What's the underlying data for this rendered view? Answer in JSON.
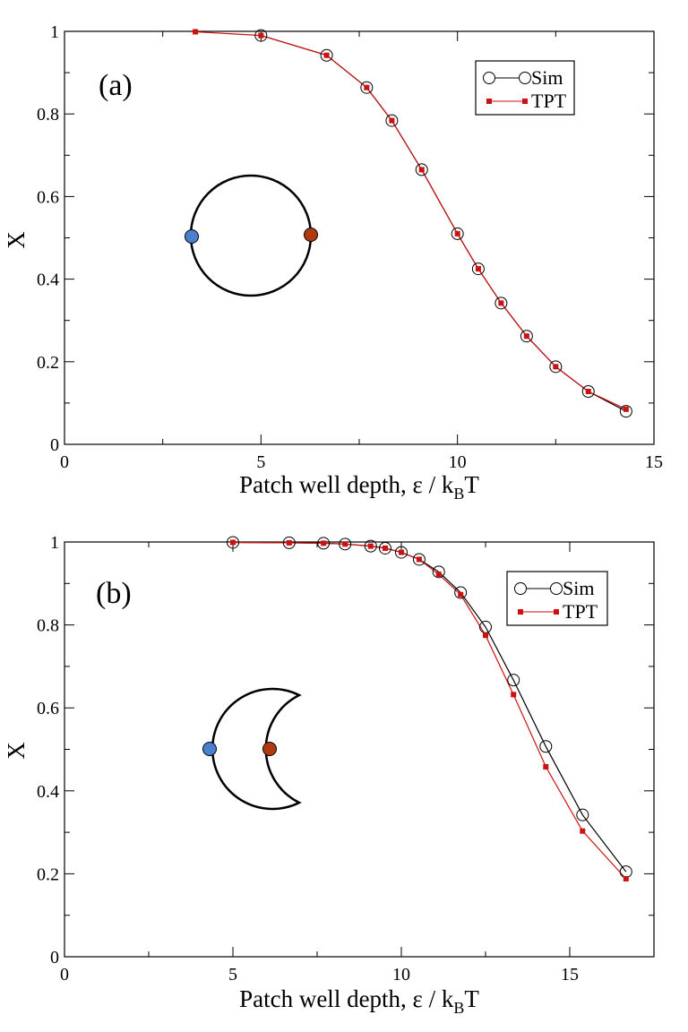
{
  "chart_data": [
    {
      "type": "line",
      "panel_label": "(a)",
      "xlabel": "Patch well depth, ε / k",
      "xlabel_sub": "B",
      "xlabel_tail": "T",
      "ylabel": "X",
      "xlim": [
        0,
        15
      ],
      "ylim": [
        0,
        1
      ],
      "xticks": [
        0,
        5,
        10,
        15
      ],
      "yticks": [
        0,
        0.2,
        0.4,
        0.6,
        0.8,
        1
      ],
      "ytick_labels": [
        "0",
        "0.2",
        "0.4",
        "0.6",
        "0.8",
        "1"
      ],
      "grid": false,
      "legend_position": "top-right",
      "inset_shape": "circle",
      "colors": {
        "sim": "#000000",
        "tpt": "#cc1111",
        "patch_left": "#4a7fd0",
        "patch_right": "#b23a10"
      },
      "series": [
        {
          "name": "Sim",
          "marker": "open-circle",
          "x": [
            5.0,
            6.67,
            7.69,
            8.33,
            9.09,
            10.0,
            10.53,
            11.11,
            11.76,
            12.5,
            13.33,
            14.29
          ],
          "y": [
            0.99,
            0.942,
            0.864,
            0.784,
            0.665,
            0.51,
            0.425,
            0.342,
            0.262,
            0.188,
            0.128,
            0.08
          ]
        },
        {
          "name": "TPT",
          "marker": "filled-square",
          "x": [
            3.33,
            5.0,
            6.67,
            7.69,
            8.33,
            9.09,
            10.0,
            10.53,
            11.11,
            11.76,
            12.5,
            13.33,
            14.29
          ],
          "y": [
            0.999,
            0.99,
            0.942,
            0.864,
            0.784,
            0.665,
            0.51,
            0.425,
            0.342,
            0.262,
            0.188,
            0.128,
            0.085
          ]
        }
      ]
    },
    {
      "type": "line",
      "panel_label": "(b)",
      "xlabel": "Patch well depth, ε / k",
      "xlabel_sub": "B",
      "xlabel_tail": "T",
      "ylabel": "X",
      "xlim": [
        0,
        17.5
      ],
      "ylim": [
        0,
        1
      ],
      "xticks": [
        0,
        5,
        10,
        15
      ],
      "yticks": [
        0,
        0.2,
        0.4,
        0.6,
        0.8,
        1
      ],
      "ytick_labels": [
        "0",
        "0.2",
        "0.4",
        "0.6",
        "0.8",
        "1"
      ],
      "grid": false,
      "legend_position": "top-right",
      "inset_shape": "crescent",
      "colors": {
        "sim": "#000000",
        "tpt": "#cc1111",
        "patch_left": "#4a7fd0",
        "patch_right": "#b23a10"
      },
      "series": [
        {
          "name": "Sim",
          "marker": "open-circle",
          "x": [
            5.0,
            6.67,
            7.69,
            8.33,
            9.09,
            9.52,
            10.0,
            10.53,
            11.11,
            11.76,
            12.5,
            13.33,
            14.29,
            15.38,
            16.67
          ],
          "y": [
            0.999,
            0.998,
            0.997,
            0.995,
            0.99,
            0.985,
            0.975,
            0.958,
            0.928,
            0.878,
            0.795,
            0.667,
            0.507,
            0.342,
            0.205
          ]
        },
        {
          "name": "TPT",
          "marker": "filled-square",
          "x": [
            5.0,
            6.67,
            7.69,
            8.33,
            9.09,
            9.52,
            10.0,
            10.53,
            11.11,
            11.76,
            12.5,
            13.33,
            14.29,
            15.38,
            16.67
          ],
          "y": [
            0.999,
            0.998,
            0.997,
            0.995,
            0.99,
            0.985,
            0.975,
            0.958,
            0.922,
            0.873,
            0.775,
            0.632,
            0.458,
            0.303,
            0.188
          ]
        }
      ]
    }
  ]
}
